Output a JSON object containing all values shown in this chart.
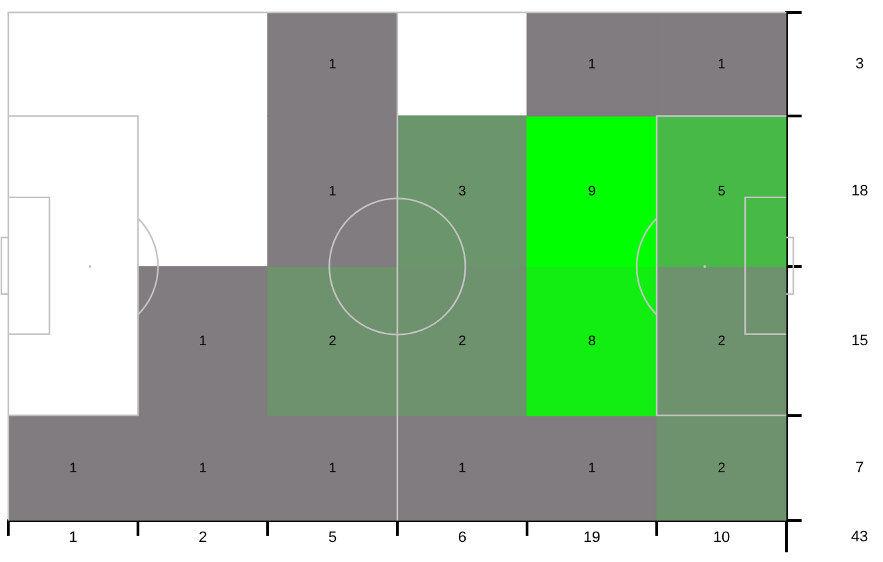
{
  "chart_data": {
    "type": "heatmap",
    "categories": [
      "1",
      "2",
      "5",
      "6",
      "19",
      "10"
    ],
    "y_categories": [
      "3",
      "18",
      "15",
      "7"
    ],
    "cells": [
      [
        null,
        null,
        1,
        null,
        1,
        1
      ],
      [
        null,
        null,
        1,
        3,
        9,
        5
      ],
      [
        null,
        1,
        2,
        2,
        8,
        2
      ],
      [
        1,
        1,
        1,
        1,
        1,
        2
      ]
    ],
    "colors": [
      [
        null,
        null,
        "#807c80",
        null,
        "#807c80",
        "#807c80"
      ],
      [
        null,
        null,
        "#807c80",
        "#6b956b",
        "#00ff00",
        "#47b947"
      ],
      [
        null,
        "#807c80",
        "#6e916e",
        "#6e916e",
        "#12ee12",
        "#6e916e"
      ],
      [
        "#807c80",
        "#807c80",
        "#807c80",
        "#807c80",
        "#807c80",
        "#6e916e"
      ]
    ],
    "data_labels": true,
    "annotations": [
      "43"
    ]
  }
}
